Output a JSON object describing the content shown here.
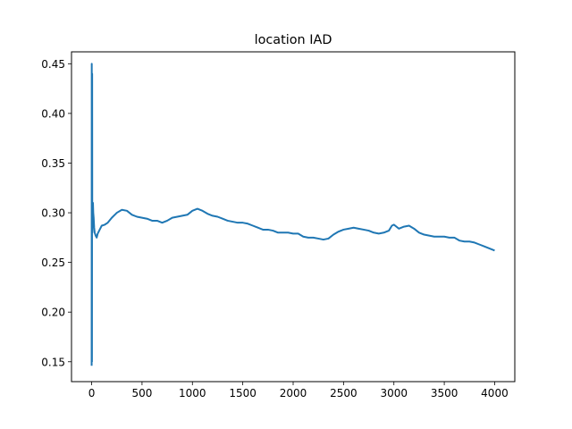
{
  "chart_data": {
    "type": "line",
    "title": "location IAD",
    "xlabel": "",
    "ylabel": "",
    "xlim": [
      -200,
      4200
    ],
    "ylim": [
      0.13,
      0.462
    ],
    "x_ticks": [
      0,
      500,
      1000,
      1500,
      2000,
      2500,
      3000,
      3500,
      4000
    ],
    "x_tick_labels": [
      "0",
      "500",
      "1000",
      "1500",
      "2000",
      "2500",
      "3000",
      "3500",
      "4000"
    ],
    "y_ticks": [
      0.15,
      0.2,
      0.25,
      0.3,
      0.35,
      0.4,
      0.45
    ],
    "y_tick_labels": [
      "0.15",
      "0.20",
      "0.25",
      "0.30",
      "0.35",
      "0.40",
      "0.45"
    ],
    "grid": false,
    "legend": "none",
    "series": [
      {
        "color": "#1f77b4",
        "x": [
          0,
          1,
          2,
          3,
          4,
          5,
          6,
          7,
          8,
          10,
          13,
          16,
          20,
          25,
          30,
          40,
          50,
          60,
          80,
          100,
          130,
          160,
          200,
          250,
          300,
          350,
          400,
          450,
          500,
          550,
          600,
          650,
          700,
          750,
          800,
          850,
          900,
          950,
          1000,
          1050,
          1100,
          1150,
          1200,
          1250,
          1300,
          1350,
          1400,
          1450,
          1500,
          1550,
          1600,
          1650,
          1700,
          1750,
          1800,
          1850,
          1900,
          1950,
          2000,
          2050,
          2100,
          2150,
          2200,
          2250,
          2300,
          2350,
          2400,
          2450,
          2500,
          2550,
          2600,
          2650,
          2700,
          2750,
          2800,
          2850,
          2900,
          2950,
          2980,
          3000,
          3050,
          3100,
          3150,
          3200,
          3250,
          3300,
          3350,
          3400,
          3450,
          3500,
          3550,
          3600,
          3650,
          3700,
          3750,
          3800,
          3850,
          3900,
          3950,
          4000
        ],
        "y": [
          0.146,
          0.45,
          0.4,
          0.15,
          0.35,
          0.44,
          0.3,
          0.28,
          0.31,
          0.29,
          0.31,
          0.3,
          0.295,
          0.285,
          0.28,
          0.277,
          0.275,
          0.279,
          0.283,
          0.287,
          0.288,
          0.29,
          0.295,
          0.3,
          0.303,
          0.302,
          0.298,
          0.296,
          0.295,
          0.294,
          0.292,
          0.292,
          0.29,
          0.292,
          0.295,
          0.296,
          0.297,
          0.298,
          0.302,
          0.304,
          0.302,
          0.299,
          0.297,
          0.296,
          0.294,
          0.292,
          0.291,
          0.29,
          0.29,
          0.289,
          0.287,
          0.285,
          0.283,
          0.283,
          0.282,
          0.28,
          0.28,
          0.28,
          0.279,
          0.279,
          0.276,
          0.275,
          0.275,
          0.274,
          0.273,
          0.274,
          0.278,
          0.281,
          0.283,
          0.284,
          0.285,
          0.284,
          0.283,
          0.282,
          0.28,
          0.279,
          0.28,
          0.282,
          0.287,
          0.288,
          0.284,
          0.286,
          0.287,
          0.284,
          0.28,
          0.278,
          0.277,
          0.276,
          0.276,
          0.276,
          0.275,
          0.275,
          0.272,
          0.271,
          0.271,
          0.27,
          0.268,
          0.266,
          0.264,
          0.262
        ]
      }
    ]
  }
}
